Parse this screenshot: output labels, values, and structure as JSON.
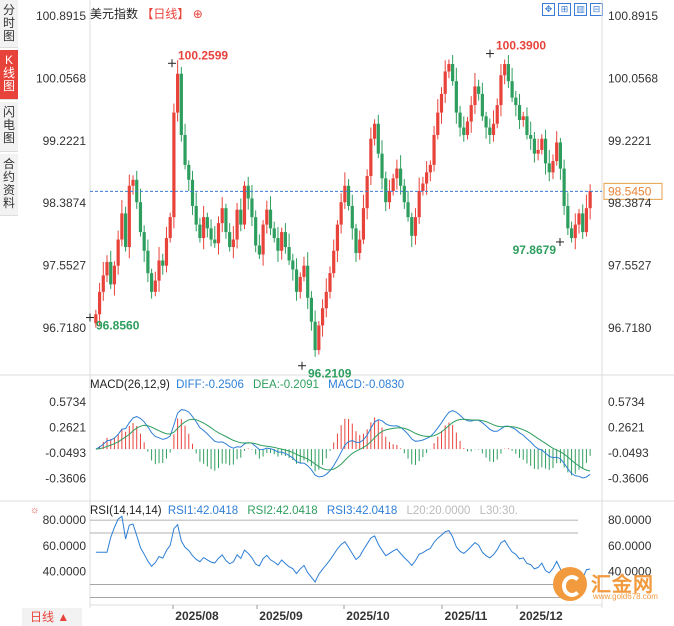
{
  "side_tabs": [
    {
      "label": "分时图",
      "active": false
    },
    {
      "label": "K线图",
      "active": true
    },
    {
      "label": "闪电图",
      "active": false
    },
    {
      "label": "合约资料",
      "active": false
    }
  ],
  "header": {
    "name": "美元指数",
    "period_tag": "【日线】",
    "add_icon": "⊕"
  },
  "toolbar": [
    {
      "icon": "move-icon",
      "glyph": "✥"
    },
    {
      "icon": "expand-icon",
      "glyph": "⊞"
    },
    {
      "icon": "bar-chart-icon",
      "glyph": "▥"
    },
    {
      "icon": "settings-icon",
      "glyph": "⊟"
    }
  ],
  "bottom": {
    "period_label": "日线 ▲"
  },
  "watermark": {
    "text": "汇金网",
    "url": "www.gold678.com"
  },
  "colors": {
    "up": "#e8433b",
    "down": "#2e9e5e",
    "diff": "#2e7fd6",
    "dea": "#2e9e5e",
    "current": "#3a7bd5"
  },
  "chart_data": [
    {
      "type": "candlestick",
      "title": "美元指数",
      "y_ticks": [
        "100.8915",
        "100.0568",
        "99.2221",
        "98.3874",
        "97.5527",
        "96.7180"
      ],
      "ylim": [
        96.1,
        101.0
      ],
      "x_ticks": [
        "2025/08",
        "2025/09",
        "2025/10",
        "2025/11",
        "2025/12"
      ],
      "current_value": "98.5450",
      "annotations": [
        {
          "label": "100.2599",
          "value": 100.2599,
          "kind": "high"
        },
        {
          "label": "96.8560",
          "value": 96.856,
          "kind": "low"
        },
        {
          "label": "96.2109",
          "value": 96.2109,
          "kind": "low"
        },
        {
          "label": "100.3900",
          "value": 100.39,
          "kind": "high"
        },
        {
          "label": "97.8679",
          "value": 97.8679,
          "kind": "low"
        }
      ],
      "series_close": [
        96.9,
        97.2,
        97.42,
        97.6,
        97.3,
        97.55,
        97.9,
        98.25,
        97.8,
        98.62,
        98.7,
        98.4,
        98.0,
        97.75,
        97.45,
        97.2,
        97.35,
        97.62,
        97.55,
        97.92,
        98.2,
        99.6,
        100.12,
        99.3,
        98.9,
        98.7,
        98.35,
        98.1,
        97.92,
        98.2,
        98.05,
        97.9,
        97.85,
        98.12,
        98.32,
        98.0,
        97.8,
        97.9,
        98.3,
        98.1,
        98.62,
        98.45,
        98.2,
        97.82,
        97.7,
        98.1,
        98.3,
        98.05,
        97.92,
        97.75,
        98.0,
        97.8,
        97.62,
        97.5,
        97.2,
        97.4,
        97.55,
        97.12,
        96.8,
        96.42,
        96.75,
        96.98,
        97.2,
        97.45,
        97.75,
        98.1,
        98.4,
        98.62,
        98.35,
        98.05,
        97.72,
        97.9,
        98.32,
        98.75,
        99.25,
        99.45,
        99.05,
        98.72,
        98.4,
        98.55,
        98.72,
        98.85,
        98.62,
        98.4,
        98.2,
        97.95,
        98.2,
        98.55,
        98.65,
        98.8,
        98.9,
        99.3,
        99.6,
        99.85,
        100.15,
        100.25,
        100.02,
        99.6,
        99.4,
        99.3,
        99.48,
        99.7,
        99.95,
        99.85,
        99.55,
        99.4,
        99.3,
        99.45,
        99.7,
        100.1,
        100.25,
        100.02,
        99.8,
        99.7,
        99.5,
        99.55,
        99.3,
        99.25,
        99.05,
        99.1,
        99.25,
        98.92,
        98.8,
        98.95,
        99.2,
        98.85,
        98.35,
        98.05,
        97.92,
        98.1,
        98.25,
        98.0,
        98.32,
        98.55
      ],
      "series_diff_last": -0.2506,
      "series_dea_last": -0.2091
    },
    {
      "type": "macd",
      "title": "MACD(26,12,9)",
      "legend": [
        {
          "label": "DIFF:-0.2506",
          "color": "#2e7fd6"
        },
        {
          "label": "DEA:-0.2091",
          "color": "#2e9e5e"
        },
        {
          "label": "MACD:-0.0830",
          "color": "#2e9e5e"
        }
      ],
      "y_ticks": [
        "0.5734",
        "0.2621",
        "-0.0493",
        "-0.3606"
      ],
      "ylim": [
        -0.62,
        0.72
      ],
      "diff": -0.2506,
      "dea": -0.2091,
      "macd": -0.083
    },
    {
      "type": "rsi",
      "title": "RSI(14,14,14)",
      "legend": [
        {
          "label": "RSI1:42.0418",
          "color": "#2e7fd6"
        },
        {
          "label": "RSI2:42.0418",
          "color": "#2e9e5e"
        },
        {
          "label": "RSI3:42.0418",
          "color": "#2e7fd6"
        },
        {
          "label": "L20:20.0000",
          "color": "#bbbbbb"
        },
        {
          "label": "L30:30.",
          "color": "#bbbbbb"
        }
      ],
      "y_ticks": [
        "80.0000",
        "60.0000",
        "40.0000"
      ],
      "ylim": [
        18,
        84
      ],
      "rsi": 42.0418
    }
  ]
}
